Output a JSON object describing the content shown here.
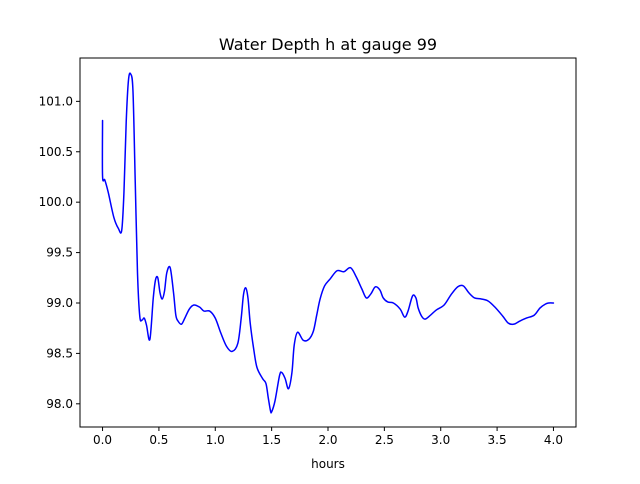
{
  "chart_data": {
    "type": "line",
    "title": "Water Depth h at gauge 99",
    "xlabel": "hours",
    "ylabel": "",
    "xlim": [
      -0.2,
      4.2
    ],
    "ylim": [
      97.77,
      101.43
    ],
    "x_ticks": [
      0.0,
      0.5,
      1.0,
      1.5,
      2.0,
      2.5,
      3.0,
      3.5,
      4.0
    ],
    "x_tick_labels": [
      "0.0",
      "0.5",
      "1.0",
      "1.5",
      "2.0",
      "2.5",
      "3.0",
      "3.5",
      "4.0"
    ],
    "y_ticks": [
      98.0,
      98.5,
      99.0,
      99.5,
      100.0,
      100.5,
      101.0
    ],
    "y_tick_labels": [
      "98.0",
      "98.5",
      "99.0",
      "99.5",
      "100.0",
      "100.5",
      "101.0"
    ],
    "grid": false,
    "series": [
      {
        "color": "#0000ff",
        "x": [
          0.0,
          0.0,
          0.02,
          0.05,
          0.1,
          0.14,
          0.17,
          0.19,
          0.21,
          0.23,
          0.25,
          0.27,
          0.29,
          0.31,
          0.33,
          0.35,
          0.37,
          0.39,
          0.42,
          0.45,
          0.47,
          0.49,
          0.51,
          0.53,
          0.55,
          0.57,
          0.6,
          0.63,
          0.65,
          0.67,
          0.7,
          0.73,
          0.77,
          0.81,
          0.86,
          0.9,
          0.95,
          1.0,
          1.05,
          1.1,
          1.15,
          1.2,
          1.23,
          1.25,
          1.27,
          1.29,
          1.31,
          1.34,
          1.37,
          1.42,
          1.45,
          1.47,
          1.49,
          1.5,
          1.53,
          1.57,
          1.59,
          1.62,
          1.65,
          1.68,
          1.7,
          1.73,
          1.78,
          1.83,
          1.87,
          1.9,
          1.93,
          1.97,
          2.02,
          2.08,
          2.14,
          2.2,
          2.25,
          2.3,
          2.34,
          2.38,
          2.42,
          2.46,
          2.49,
          2.53,
          2.58,
          2.64,
          2.68,
          2.71,
          2.75,
          2.78,
          2.8,
          2.83,
          2.86,
          2.9,
          2.96,
          3.03,
          3.09,
          3.15,
          3.2,
          3.25,
          3.3,
          3.36,
          3.42,
          3.48,
          3.55,
          3.6,
          3.65,
          3.7,
          3.76,
          3.83,
          3.88,
          3.93,
          3.96,
          4.0
        ],
        "y": [
          100.81,
          100.26,
          100.22,
          100.1,
          99.85,
          99.74,
          99.72,
          100.1,
          100.8,
          101.21,
          101.27,
          101.1,
          100.2,
          99.3,
          98.87,
          98.83,
          98.85,
          98.78,
          98.64,
          99.05,
          99.23,
          99.25,
          99.1,
          99.04,
          99.12,
          99.3,
          99.35,
          99.1,
          98.88,
          98.82,
          98.79,
          98.85,
          98.94,
          98.98,
          98.96,
          98.92,
          98.92,
          98.85,
          98.7,
          98.57,
          98.52,
          98.6,
          98.85,
          99.08,
          99.15,
          99.05,
          98.8,
          98.55,
          98.36,
          98.25,
          98.2,
          98.06,
          97.93,
          97.92,
          98.03,
          98.28,
          98.31,
          98.25,
          98.15,
          98.31,
          98.58,
          98.71,
          98.63,
          98.64,
          98.72,
          98.88,
          99.04,
          99.17,
          99.24,
          99.32,
          99.31,
          99.35,
          99.26,
          99.14,
          99.05,
          99.09,
          99.16,
          99.13,
          99.05,
          99.01,
          99.0,
          98.94,
          98.86,
          98.92,
          99.07,
          99.05,
          98.95,
          98.87,
          98.84,
          98.87,
          98.93,
          98.98,
          99.08,
          99.16,
          99.17,
          99.1,
          99.05,
          99.04,
          99.02,
          98.96,
          98.87,
          98.8,
          98.79,
          98.82,
          98.85,
          98.88,
          98.95,
          98.99,
          99.0,
          99.0
        ]
      }
    ]
  }
}
